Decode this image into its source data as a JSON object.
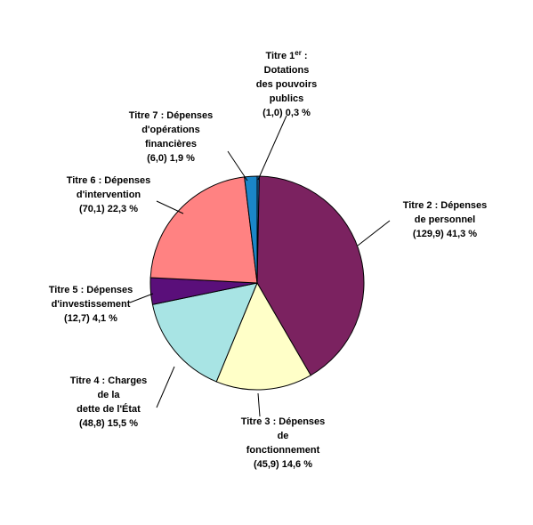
{
  "chart_data": {
    "type": "pie",
    "title": "",
    "slices": [
      {
        "lines": [
          "Titre 1er :",
          "Dotations",
          "des pouvoirs",
          "publics",
          "(1,0)  0,3 %"
        ],
        "value": 1.0,
        "percent": 0.3,
        "color": "#1f6fb2"
      },
      {
        "lines": [
          "Titre 2 : Dépenses",
          "de personnel",
          "(129,9) 41,3 %"
        ],
        "value": 129.9,
        "percent": 41.3,
        "color": "#7b2260"
      },
      {
        "lines": [
          "Titre 3 : Dépenses",
          "de",
          "fonctionnement",
          "(45,9)   14,6 %"
        ],
        "value": 45.9,
        "percent": 14.6,
        "color": "#ffffc8"
      },
      {
        "lines": [
          "Titre 4 : Charges",
          "de la",
          "dette de l'État",
          "(48,8)  15,5 %"
        ],
        "value": 48.8,
        "percent": 15.5,
        "color": "#a8e4e4"
      },
      {
        "lines": [
          "Titre 5 : Dépenses",
          "d'investissement",
          "(12,7)  4,1 %"
        ],
        "value": 12.7,
        "percent": 4.1,
        "color": "#5a0f7a"
      },
      {
        "lines": [
          "Titre 6 : Dépenses",
          "d'intervention",
          "(70,1)  22,3 %"
        ],
        "value": 70.1,
        "percent": 22.3,
        "color": "#ff8282"
      },
      {
        "lines": [
          "Titre 7 : Dépenses",
          "d'opérations",
          "financières",
          "(6,0)  1,9 %"
        ],
        "value": 6.0,
        "percent": 1.9,
        "color": "#1a86c8"
      }
    ]
  }
}
